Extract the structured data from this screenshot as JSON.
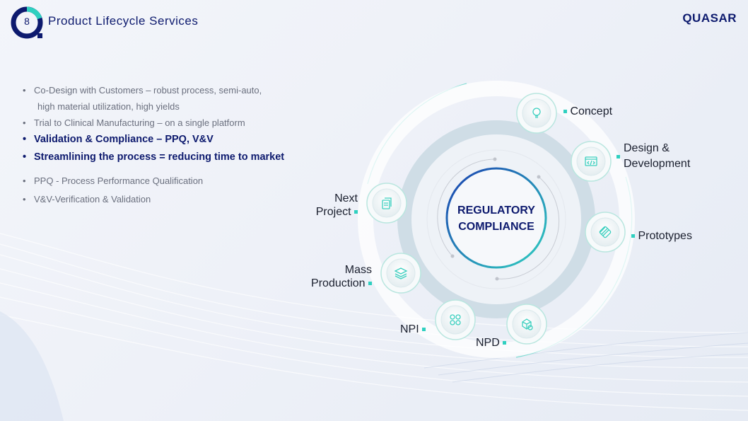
{
  "header": {
    "slide_number": "8",
    "title": "Product Lifecycle Services",
    "brand": "QUASAR"
  },
  "bullets": [
    {
      "text": "Co-Design with Customers – robust process, semi-auto,",
      "bold": false
    },
    {
      "text": "high material utilization, high yields",
      "bold": false,
      "continuation": true
    },
    {
      "text": "Trial to Clinical Manufacturing – on a single platform",
      "bold": false
    },
    {
      "text": "Validation & Compliance – PPQ, V&V",
      "bold": true
    },
    {
      "text": "Streamlining the process = reducing time to market",
      "bold": true
    },
    {
      "text": "PPQ - Process Performance Qualification",
      "bold": false
    },
    {
      "text": "V&V-Verification & Validation",
      "bold": false
    }
  ],
  "diagram": {
    "center": {
      "line1": "REGULATORY",
      "line2": "COMPLIANCE"
    },
    "stages": [
      {
        "label": "Concept",
        "icon": "lightbulb-icon"
      },
      {
        "label1": "Design &",
        "label2": "Development",
        "icon": "code-window-icon"
      },
      {
        "label": "Prototypes",
        "icon": "chip-icon"
      },
      {
        "label": "NPD",
        "icon": "cube-gear-icon"
      },
      {
        "label": "NPI",
        "icon": "apps-icon"
      },
      {
        "label1": "Mass",
        "label2": "Production",
        "icon": "layers-icon"
      },
      {
        "label1": "Next",
        "label2": "Project",
        "icon": "documents-icon"
      }
    ]
  },
  "colors": {
    "navy": "#0d1a6e",
    "teal": "#2fd0c0",
    "blue": "#1f5fd6"
  }
}
